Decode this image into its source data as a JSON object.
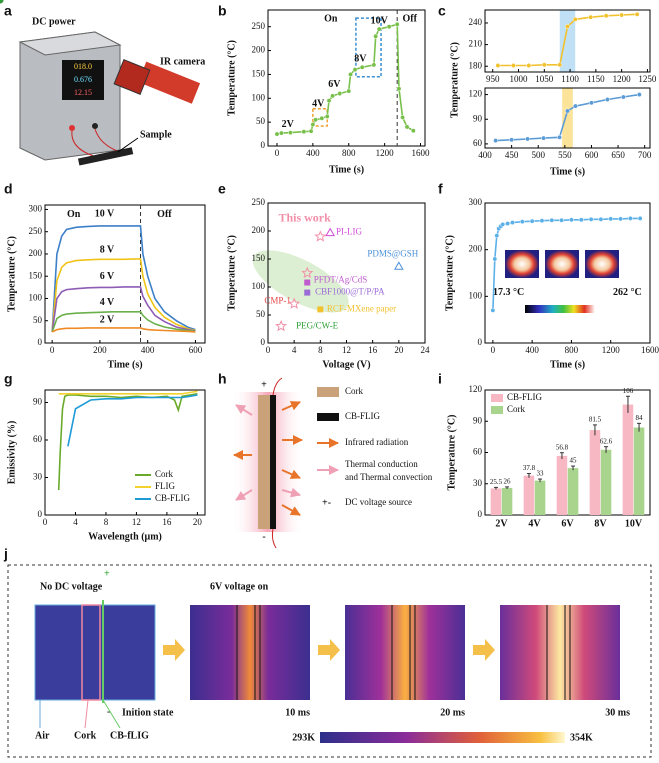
{
  "panel_labels": [
    "a",
    "b",
    "c",
    "d",
    "e",
    "f",
    "g",
    "h",
    "i",
    "j"
  ],
  "diagram_a": {
    "dc_power": "DC power",
    "ir_camera": "IR camera",
    "sample": "Sample",
    "display": [
      "018.0",
      "0.676",
      "12.15"
    ]
  },
  "diagram_h": {
    "plus": "+",
    "minus": "-",
    "legend": [
      "Cork",
      "CB-FLIG",
      "Infrared radiation",
      "Thermal conduction",
      "and Thermal convection",
      "DC voltage source"
    ],
    "source_symbol": "+-"
  },
  "diagram_j": {
    "plus": "+",
    "minus": "-",
    "states": [
      "No DC voltage",
      "6V voltage on"
    ],
    "captions": [
      "Inition state",
      "10 ms",
      "20 ms",
      "30 ms"
    ],
    "materials": [
      "Air",
      "Cork",
      "CB-fLIG"
    ],
    "colorbar": [
      "293K",
      "354K"
    ]
  },
  "chart_data": [
    {
      "type": "line",
      "x_label": "Time (s)",
      "y_label": "Temperature (°C)",
      "color": "#78c04a",
      "marker": "o",
      "xlim": [
        -100,
        1650
      ],
      "ylim": [
        0,
        285
      ],
      "xticks": [
        0,
        400,
        800,
        1200,
        1600
      ],
      "yticks": [
        0,
        50,
        100,
        150,
        200,
        250
      ],
      "x": [
        0,
        50,
        150,
        300,
        380,
        400,
        430,
        500,
        560,
        580,
        620,
        700,
        800,
        820,
        870,
        950,
        1080,
        1100,
        1140,
        1250,
        1340,
        1360,
        1400,
        1450,
        1520
      ],
      "values": [
        25,
        27,
        28,
        30,
        31,
        45,
        55,
        58,
        62,
        95,
        105,
        110,
        115,
        150,
        160,
        165,
        170,
        230,
        245,
        250,
        255,
        120,
        60,
        40,
        32
      ],
      "annotations": [
        "On",
        "Off",
        "2V",
        "4V",
        "6V",
        "8V",
        "10V"
      ]
    },
    {
      "type": "line",
      "y_label": "Temperature (°C)",
      "color": "#f2c12e",
      "marker": "o",
      "xlim": [
        935,
        1255
      ],
      "ylim": [
        172,
        258
      ],
      "xticks": [
        950,
        1000,
        1050,
        1100,
        1150,
        1200,
        1250
      ],
      "yticks": [
        180,
        210,
        240
      ],
      "highlight": [
        1080,
        1110
      ],
      "highlight_color": "#bfe0f5",
      "x": [
        960,
        990,
        1020,
        1050,
        1080,
        1095,
        1110,
        1140,
        1170,
        1200,
        1230
      ],
      "values": [
        181,
        181,
        181,
        182,
        182,
        235,
        245,
        248,
        250,
        251,
        252
      ]
    },
    {
      "type": "line",
      "x_label": "Time (s)",
      "color": "#5b9bd5",
      "marker": "o",
      "xlim": [
        400,
        710
      ],
      "ylim": [
        55,
        128
      ],
      "xticks": [
        400,
        450,
        500,
        550,
        600,
        650,
        700
      ],
      "yticks": [
        60,
        90,
        120
      ],
      "highlight": [
        545,
        565
      ],
      "highlight_color": "#fbe39a",
      "x": [
        420,
        450,
        480,
        510,
        540,
        555,
        570,
        600,
        630,
        660,
        690
      ],
      "values": [
        64,
        65,
        66,
        67,
        68,
        100,
        106,
        110,
        114,
        117,
        120
      ]
    },
    {
      "type": "line",
      "x_label": "Time (s)",
      "y_label": "Temperature (°C)",
      "legend": "on-curve",
      "xlim": [
        -30,
        640
      ],
      "ylim": [
        0,
        310
      ],
      "xticks": [
        0,
        200,
        400,
        600
      ],
      "yticks": [
        0,
        50,
        100,
        150,
        200,
        250,
        300
      ],
      "annotations": [
        "On",
        "Off"
      ],
      "x": [
        0,
        20,
        40,
        60,
        100,
        150,
        200,
        250,
        300,
        350,
        370,
        380,
        400,
        430,
        470,
        520,
        570,
        600
      ],
      "series": [
        {
          "name": "10 V",
          "color": "#3d7fc9",
          "values": [
            25,
            200,
            240,
            255,
            260,
            262,
            263,
            263,
            263,
            263,
            263,
            200,
            150,
            100,
            70,
            50,
            35,
            30
          ]
        },
        {
          "name": "8 V",
          "color": "#f0c419",
          "values": [
            25,
            140,
            170,
            180,
            185,
            187,
            188,
            188,
            188,
            189,
            189,
            150,
            110,
            80,
            58,
            42,
            32,
            28
          ]
        },
        {
          "name": "6 V",
          "color": "#8e5bb5",
          "values": [
            25,
            100,
            115,
            120,
            122,
            124,
            125,
            125,
            126,
            126,
            126,
            105,
            85,
            62,
            48,
            36,
            30,
            27
          ]
        },
        {
          "name": "4 V",
          "color": "#6ab04c",
          "values": [
            25,
            55,
            62,
            65,
            67,
            68,
            69,
            70,
            70,
            70,
            70,
            62,
            52,
            43,
            36,
            31,
            28,
            26
          ]
        },
        {
          "name": "2 V",
          "color": "#f08a24",
          "values": [
            25,
            30,
            32,
            33,
            33,
            34,
            34,
            34,
            34,
            34,
            34,
            32,
            30,
            29,
            28,
            27,
            26,
            25
          ]
        }
      ]
    },
    {
      "type": "scatter",
      "x_label": "Voltage (V)",
      "y_label": "Temperature (°C)",
      "legend": "beside-points",
      "xlim": [
        0,
        24
      ],
      "ylim": [
        0,
        250
      ],
      "xticks": [
        0,
        4,
        8,
        12,
        16,
        20,
        24
      ],
      "yticks": [
        0,
        50,
        100,
        150,
        200,
        250
      ],
      "series": [
        {
          "name": "This work",
          "color": "#f28fa8",
          "marker": "star",
          "x": [
            2,
            4,
            6,
            8
          ],
          "values": [
            30,
            70,
            125,
            190
          ]
        },
        {
          "name": "PI-LIG",
          "color": "#d24bd8",
          "marker": "triangle",
          "x": [
            9.5
          ],
          "values": [
            197
          ]
        },
        {
          "name": "PDMS@GSH",
          "color": "#4a90d9",
          "marker": "triangle",
          "x": [
            20
          ],
          "values": [
            137
          ]
        },
        {
          "name": "PFDT/Ag/CdS",
          "color": "#c05bd0",
          "marker": "square",
          "x": [
            6
          ],
          "values": [
            108
          ]
        },
        {
          "name": "CBF1000@T/P/PA",
          "color": "#9b6bd6",
          "marker": "square",
          "x": [
            6
          ],
          "values": [
            90
          ]
        },
        {
          "name": "RCF-MXene paper",
          "color": "#f2c12e",
          "marker": "square",
          "x": [
            8
          ],
          "values": [
            60
          ]
        },
        {
          "name": "CMP-1",
          "color": "#e54848",
          "marker": "circle",
          "x": [
            4
          ],
          "values": [
            68
          ]
        },
        {
          "name": "PEG/CW-E",
          "color": "#2e9e3a",
          "marker": "circle",
          "x": [
            5
          ],
          "values": [
            46
          ]
        }
      ]
    },
    {
      "type": "line",
      "x_label": "Time (s)",
      "y_label": "Temperature (°C)",
      "color": "#5bb0e8",
      "marker": "o",
      "xlim": [
        -80,
        1600
      ],
      "ylim": [
        0,
        300
      ],
      "xticks": [
        0,
        400,
        800,
        1200,
        1600
      ],
      "yticks": [
        0,
        100,
        200,
        300
      ],
      "annotations": [
        "17.3 °C",
        "262 °C"
      ],
      "x": [
        0,
        20,
        40,
        60,
        80,
        100,
        150,
        200,
        300,
        400,
        500,
        600,
        700,
        800,
        900,
        1000,
        1100,
        1200,
        1300,
        1400,
        1500
      ],
      "values": [
        70,
        180,
        230,
        245,
        250,
        254,
        256,
        258,
        260,
        261,
        262,
        263,
        263,
        264,
        264,
        265,
        265,
        266,
        266,
        267,
        267
      ]
    },
    {
      "type": "line",
      "x_label": "Wavelength (μm)",
      "y_label": "Emissivity (%)",
      "legend": "lower right",
      "xlim": [
        0,
        21
      ],
      "ylim": [
        0,
        100
      ],
      "xticks": [
        0,
        4,
        8,
        12,
        16,
        20
      ],
      "yticks": [
        0,
        30,
        60,
        90
      ],
      "x": [
        1.8,
        2,
        2.3,
        2.6,
        3,
        4,
        6,
        8,
        10,
        12,
        14,
        16,
        17,
        17.5,
        18,
        19,
        20
      ],
      "series": [
        {
          "name": "Cork",
          "color": "#6aaa2a",
          "values": [
            20,
            50,
            85,
            95,
            96,
            96,
            95,
            95,
            94,
            95,
            94,
            95,
            92,
            84,
            95,
            96,
            97
          ]
        },
        {
          "name": "FLIG",
          "color": "#f2d22e",
          "values": [
            97,
            97,
            97,
            97,
            97,
            97,
            97,
            97,
            97,
            97,
            97,
            97,
            97,
            97,
            97,
            98,
            99
          ]
        },
        {
          "name": "CB-FLIG",
          "color": "#1e9bd7",
          "values": [
            null,
            null,
            null,
            null,
            55,
            85,
            92,
            93,
            93,
            94,
            94,
            94,
            94,
            94,
            94,
            95,
            96
          ]
        }
      ]
    },
    {
      "type": "bar",
      "y_label": "Temperature (°C)",
      "legend": "upper left",
      "ylim": [
        0,
        120
      ],
      "yticks": [
        0,
        30,
        60,
        90,
        120
      ],
      "categories": [
        "2V",
        "4V",
        "6V",
        "8V",
        "10V"
      ],
      "series": [
        {
          "name": "CB-FLIG",
          "color": "#f7b8c4",
          "values": [
            25.5,
            37.8,
            56.8,
            81.5,
            106
          ],
          "errors": [
            1,
            2,
            3,
            5,
            8
          ]
        },
        {
          "name": "Cork",
          "color": "#a9d48e",
          "values": [
            26,
            33,
            45,
            62.6,
            84
          ],
          "errors": [
            1,
            1.5,
            2,
            3,
            4
          ]
        }
      ]
    }
  ]
}
